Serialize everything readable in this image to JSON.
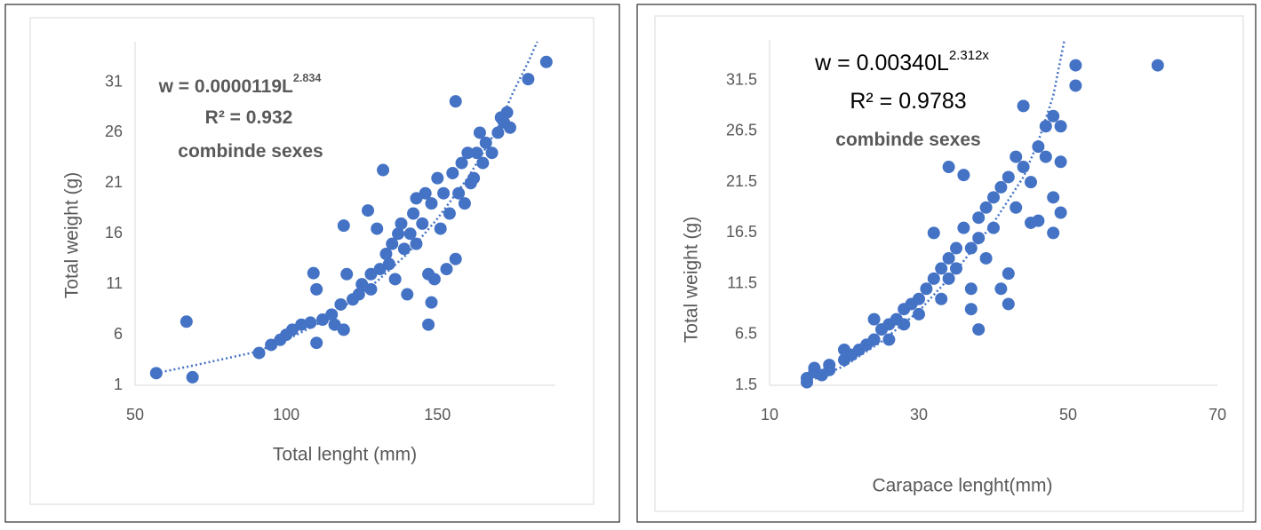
{
  "chart_data": [
    {
      "type": "scatter",
      "color": "#4472c4",
      "x_label": "Total lenght (mm)",
      "y_label": "Total weight (g)",
      "xlim": [
        50,
        189
      ],
      "ylim": [
        1,
        35
      ],
      "xticks": [
        50,
        100,
        150
      ],
      "yticks": [
        1,
        6,
        11,
        16,
        21,
        26,
        31
      ],
      "annotations": [
        {
          "text": "w = 0.0000119L",
          "superscript": "2.834"
        },
        {
          "text": "R² = 0.932"
        },
        {
          "text": "combinde sexes"
        }
      ],
      "trendline": {
        "x": [
          57,
          70,
          90,
          100,
          110,
          120,
          130,
          140,
          150,
          160,
          170,
          175,
          180,
          183
        ],
        "y": [
          2.2,
          3.0,
          4.3,
          5.5,
          7,
          9,
          11.3,
          14,
          17.5,
          21.5,
          26.5,
          30,
          33,
          35
        ]
      },
      "x": [
        57,
        67,
        69,
        91,
        95,
        98,
        100,
        102,
        105,
        108,
        109,
        110,
        110,
        112,
        115,
        116,
        118,
        119,
        119,
        120,
        122,
        124,
        125,
        127,
        128,
        128,
        130,
        131,
        132,
        133,
        134,
        135,
        136,
        137,
        138,
        139,
        140,
        141,
        142,
        143,
        143,
        145,
        146,
        147,
        147,
        148,
        148,
        149,
        150,
        151,
        152,
        153,
        154,
        155,
        156,
        156,
        157,
        158,
        159,
        160,
        161,
        162,
        163,
        164,
        165,
        166,
        168,
        170,
        171,
        172,
        173,
        174,
        180,
        186
      ],
      "y": [
        2.2,
        7.3,
        1.8,
        4.2,
        5,
        5.5,
        6,
        6.5,
        7,
        7.2,
        12.1,
        10.5,
        5.2,
        7.5,
        8,
        7,
        9,
        16.8,
        6.5,
        12,
        9.5,
        10,
        11,
        18.3,
        10.5,
        12,
        16.5,
        12.5,
        22.3,
        14,
        13,
        15,
        11.5,
        16,
        17,
        14.5,
        10,
        16,
        18,
        15,
        19.5,
        17,
        20,
        12,
        7,
        9.2,
        19,
        11.5,
        21.5,
        16.5,
        20,
        12.5,
        18,
        22,
        29.1,
        13.5,
        20,
        23,
        19,
        24,
        21,
        21.5,
        24,
        26,
        23,
        25,
        24,
        26,
        27.5,
        27,
        28,
        26.5,
        31.3,
        33
      ]
    },
    {
      "type": "scatter",
      "color": "#4472c4",
      "x_label": "Carapace lenght(mm)",
      "y_label": "Total weight (g)",
      "xlim": [
        10,
        70
      ],
      "ylim": [
        1.5,
        35.5
      ],
      "xticks": [
        10,
        30,
        50,
        70
      ],
      "yticks": [
        1.5,
        6.5,
        11.5,
        16.5,
        21.5,
        26.5,
        31.5
      ],
      "annotations": [
        {
          "text": "w = 0.00340L",
          "superscript": "2.312x"
        },
        {
          "text": "R² = 0.9783"
        },
        {
          "text": "combinde sexes"
        }
      ],
      "trendline": {
        "x": [
          15,
          20,
          25,
          30,
          35,
          40,
          44,
          46,
          48,
          49.5
        ],
        "y": [
          1.8,
          3.4,
          5.8,
          8.8,
          12.8,
          17.5,
          22,
          25.5,
          30,
          35.5
        ]
      },
      "x": [
        15,
        15,
        16,
        16,
        17,
        18,
        18,
        20,
        20,
        21,
        22,
        23,
        24,
        24,
        25,
        26,
        26,
        27,
        28,
        28,
        29,
        30,
        30,
        31,
        32,
        32,
        33,
        33,
        34,
        34,
        34,
        35,
        35,
        36,
        36,
        37,
        37,
        37,
        38,
        38,
        38,
        39,
        39,
        40,
        40,
        41,
        41,
        42,
        42,
        42,
        43,
        43,
        44,
        44,
        45,
        45,
        46,
        46,
        47,
        47,
        48,
        48,
        48,
        49,
        49,
        49,
        51,
        51,
        62
      ],
      "y": [
        1.8,
        2.2,
        2.8,
        3.2,
        2.5,
        3,
        3.5,
        4,
        5,
        4.5,
        5,
        5.5,
        6,
        8,
        7,
        7.5,
        6,
        8,
        7.5,
        9,
        9.5,
        10,
        8.5,
        11,
        12,
        16.5,
        10,
        13,
        12,
        14,
        23,
        15,
        13,
        17,
        22.2,
        15,
        9,
        11,
        18,
        16,
        7,
        19,
        14,
        20,
        17,
        11,
        21,
        9.5,
        12.5,
        22,
        24,
        19,
        29,
        23,
        21.5,
        17.5,
        25,
        17.7,
        27,
        24,
        28,
        16.5,
        20,
        27,
        23.5,
        18.5,
        33,
        31,
        33
      ]
    }
  ]
}
